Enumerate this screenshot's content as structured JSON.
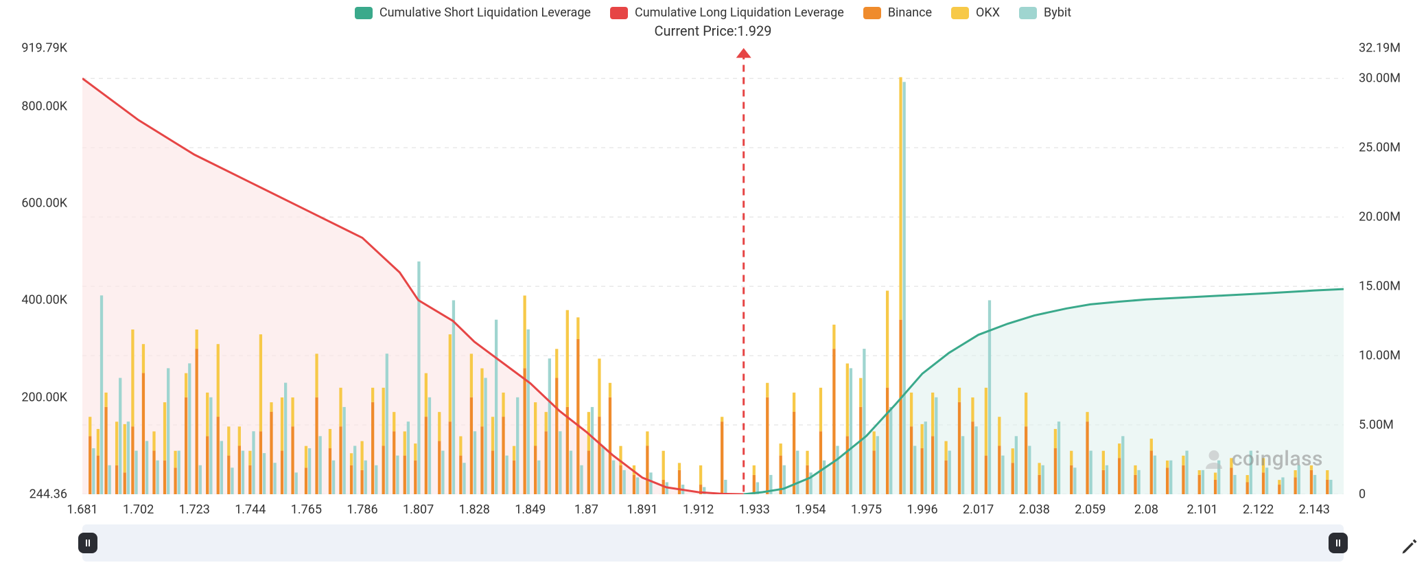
{
  "legend": {
    "items": [
      {
        "label": "Cumulative Short Liquidation Leverage",
        "color": "#3aa98b"
      },
      {
        "label": "Cumulative Long Liquidation Leverage",
        "color": "#e64545"
      },
      {
        "label": "Binance",
        "color": "#ef8b2c"
      },
      {
        "label": "OKX",
        "color": "#f7c948"
      },
      {
        "label": "Bybit",
        "color": "#9fd5d0"
      }
    ]
  },
  "current_price": {
    "label": "Current Price:",
    "value": "1.929"
  },
  "watermark": "coinglass",
  "chart": {
    "type": "combo-bar-area",
    "background_color": "#ffffff",
    "grid_color": "#dddddd",
    "grid_dash": "6 6",
    "label_fontsize": 18,
    "title_fontsize": 20,
    "x": {
      "min": 1.681,
      "max": 2.154,
      "ticks": [
        1.681,
        1.702,
        1.723,
        1.744,
        1.765,
        1.786,
        1.807,
        1.828,
        1.849,
        1.87,
        1.891,
        1.912,
        1.933,
        1.954,
        1.975,
        1.996,
        2.017,
        2.038,
        2.059,
        2.08,
        2.101,
        2.122,
        2.143
      ],
      "tick_labels": [
        "1.681",
        "1.702",
        "1.723",
        "1.744",
        "1.765",
        "1.786",
        "1.807",
        "1.828",
        "1.849",
        "1.87",
        "1.891",
        "1.912",
        "1.933",
        "1.954",
        "1.975",
        "1.996",
        "2.017",
        "2.038",
        "2.059",
        "2.08",
        "2.101",
        "2.122",
        "2.143"
      ]
    },
    "y_left": {
      "min": 244.36,
      "max": 919790,
      "ticks": [
        244.36,
        200000,
        400000,
        600000,
        800000,
        919790
      ],
      "tick_labels": [
        "244.36",
        "200.00K",
        "400.00K",
        "600.00K",
        "800.00K",
        "919.79K"
      ]
    },
    "y_right": {
      "min": 0,
      "max": 32190000,
      "ticks": [
        0,
        5000000,
        10000000,
        15000000,
        20000000,
        25000000,
        30000000,
        32190000
      ],
      "tick_labels": [
        "0",
        "5.00M",
        "10.00M",
        "15.00M",
        "20.00M",
        "25.00M",
        "30.00M",
        "32.19M"
      ]
    },
    "price_marker": {
      "x": 1.929,
      "color": "#e64545",
      "dash": "10 8",
      "width": 3,
      "arrow": true
    },
    "cumulative_long": {
      "color": "#e64545",
      "fill": "#fce7e7",
      "fill_opacity": 0.65,
      "width": 3,
      "points": [
        [
          1.681,
          30000000
        ],
        [
          1.702,
          27000000
        ],
        [
          1.723,
          24500000
        ],
        [
          1.744,
          22500000
        ],
        [
          1.765,
          20500000
        ],
        [
          1.786,
          18500000
        ],
        [
          1.8,
          16000000
        ],
        [
          1.807,
          14000000
        ],
        [
          1.82,
          12500000
        ],
        [
          1.828,
          11000000
        ],
        [
          1.842,
          9000000
        ],
        [
          1.849,
          8000000
        ],
        [
          1.86,
          6000000
        ],
        [
          1.87,
          4500000
        ],
        [
          1.88,
          2800000
        ],
        [
          1.891,
          1200000
        ],
        [
          1.9,
          500000
        ],
        [
          1.912,
          150000
        ],
        [
          1.921,
          30000
        ],
        [
          1.929,
          0
        ]
      ]
    },
    "cumulative_short": {
      "color": "#3aa98b",
      "fill": "#def1ec",
      "fill_opacity": 0.55,
      "width": 3,
      "points": [
        [
          1.929,
          0
        ],
        [
          1.936,
          150000
        ],
        [
          1.944,
          400000
        ],
        [
          1.954,
          1200000
        ],
        [
          1.964,
          2500000
        ],
        [
          1.975,
          4200000
        ],
        [
          1.986,
          6500000
        ],
        [
          1.996,
          8700000
        ],
        [
          2.006,
          10200000
        ],
        [
          2.017,
          11500000
        ],
        [
          2.028,
          12300000
        ],
        [
          2.038,
          12900000
        ],
        [
          2.05,
          13400000
        ],
        [
          2.059,
          13700000
        ],
        [
          2.07,
          13900000
        ],
        [
          2.08,
          14050000
        ],
        [
          2.095,
          14200000
        ],
        [
          2.11,
          14350000
        ],
        [
          2.125,
          14500000
        ],
        [
          2.143,
          14700000
        ],
        [
          2.154,
          14800000
        ]
      ]
    },
    "bars": {
      "bar_width_frac": 0.0011,
      "series_colors": {
        "binance": "#ef8b2c",
        "okx": "#f7c948",
        "bybit": "#9fd5d0"
      },
      "data": [
        {
          "x": 1.684,
          "binance": 120000,
          "okx": 40000,
          "bybit": 95000
        },
        {
          "x": 1.687,
          "binance": 80000,
          "okx": 55000,
          "bybit": 410000
        },
        {
          "x": 1.69,
          "binance": 180000,
          "okx": 30000,
          "bybit": 60000
        },
        {
          "x": 1.694,
          "binance": 60000,
          "okx": 90000,
          "bybit": 240000
        },
        {
          "x": 1.697,
          "binance": 45000,
          "okx": 100000,
          "bybit": 150000
        },
        {
          "x": 1.7,
          "binance": 140000,
          "okx": 200000,
          "bybit": 90000
        },
        {
          "x": 1.704,
          "binance": 250000,
          "okx": 60000,
          "bybit": 110000
        },
        {
          "x": 1.708,
          "binance": 90000,
          "okx": 40000,
          "bybit": 70000
        },
        {
          "x": 1.712,
          "binance": 70000,
          "okx": 120000,
          "bybit": 260000
        },
        {
          "x": 1.716,
          "binance": 55000,
          "okx": 35000,
          "bybit": 90000
        },
        {
          "x": 1.72,
          "binance": 200000,
          "okx": 50000,
          "bybit": 270000
        },
        {
          "x": 1.724,
          "binance": 300000,
          "okx": 40000,
          "bybit": 60000
        },
        {
          "x": 1.728,
          "binance": 120000,
          "okx": 90000,
          "bybit": 200000
        },
        {
          "x": 1.732,
          "binance": 160000,
          "okx": 150000,
          "bybit": 110000
        },
        {
          "x": 1.736,
          "binance": 80000,
          "okx": 60000,
          "bybit": 55000
        },
        {
          "x": 1.74,
          "binance": 100000,
          "okx": 40000,
          "bybit": 90000
        },
        {
          "x": 1.744,
          "binance": 60000,
          "okx": 30000,
          "bybit": 130000
        },
        {
          "x": 1.748,
          "binance": 130000,
          "okx": 200000,
          "bybit": 85000
        },
        {
          "x": 1.752,
          "binance": 170000,
          "okx": 20000,
          "bybit": 65000
        },
        {
          "x": 1.756,
          "binance": 90000,
          "okx": 110000,
          "bybit": 230000
        },
        {
          "x": 1.76,
          "binance": 140000,
          "okx": 60000,
          "bybit": 45000
        },
        {
          "x": 1.765,
          "binance": 55000,
          "okx": 45000,
          "bybit": 95000
        },
        {
          "x": 1.769,
          "binance": 200000,
          "okx": 90000,
          "bybit": 120000
        },
        {
          "x": 1.774,
          "binance": 95000,
          "okx": 40000,
          "bybit": 70000
        },
        {
          "x": 1.778,
          "binance": 140000,
          "okx": 80000,
          "bybit": 180000
        },
        {
          "x": 1.782,
          "binance": 60000,
          "okx": 25000,
          "bybit": 100000
        },
        {
          "x": 1.786,
          "binance": 50000,
          "okx": 60000,
          "bybit": 70000
        },
        {
          "x": 1.79,
          "binance": 190000,
          "okx": 30000,
          "bybit": 60000
        },
        {
          "x": 1.794,
          "binance": 100000,
          "okx": 120000,
          "bybit": 290000
        },
        {
          "x": 1.798,
          "binance": 130000,
          "okx": 40000,
          "bybit": 80000
        },
        {
          "x": 1.802,
          "binance": 80000,
          "okx": 50000,
          "bybit": 150000
        },
        {
          "x": 1.806,
          "binance": 70000,
          "okx": 35000,
          "bybit": 480000
        },
        {
          "x": 1.81,
          "binance": 160000,
          "okx": 90000,
          "bybit": 200000
        },
        {
          "x": 1.815,
          "binance": 110000,
          "okx": 60000,
          "bybit": 90000
        },
        {
          "x": 1.819,
          "binance": 150000,
          "okx": 180000,
          "bybit": 400000
        },
        {
          "x": 1.823,
          "binance": 80000,
          "okx": 40000,
          "bybit": 65000
        },
        {
          "x": 1.827,
          "binance": 200000,
          "okx": 90000,
          "bybit": 130000
        },
        {
          "x": 1.831,
          "binance": 140000,
          "okx": 120000,
          "bybit": 240000
        },
        {
          "x": 1.835,
          "binance": 90000,
          "okx": 70000,
          "bybit": 360000
        },
        {
          "x": 1.839,
          "binance": 160000,
          "okx": 50000,
          "bybit": 80000
        },
        {
          "x": 1.843,
          "binance": 70000,
          "okx": 30000,
          "bybit": 200000
        },
        {
          "x": 1.847,
          "binance": 260000,
          "okx": 150000,
          "bybit": 340000
        },
        {
          "x": 1.851,
          "binance": 100000,
          "okx": 90000,
          "bybit": 70000
        },
        {
          "x": 1.855,
          "binance": 130000,
          "okx": 40000,
          "bybit": 280000
        },
        {
          "x": 1.859,
          "binance": 240000,
          "okx": 60000,
          "bybit": 130000
        },
        {
          "x": 1.863,
          "binance": 180000,
          "okx": 200000,
          "bybit": 90000
        },
        {
          "x": 1.867,
          "binance": 320000,
          "okx": 45000,
          "bybit": 60000
        },
        {
          "x": 1.871,
          "binance": 90000,
          "okx": 80000,
          "bybit": 180000
        },
        {
          "x": 1.875,
          "binance": 160000,
          "okx": 120000,
          "bybit": 100000
        },
        {
          "x": 1.879,
          "binance": 200000,
          "okx": 30000,
          "bybit": 70000
        },
        {
          "x": 1.883,
          "binance": 60000,
          "okx": 40000,
          "bybit": 50000
        },
        {
          "x": 1.888,
          "binance": 40000,
          "okx": 20000,
          "bybit": 35000
        },
        {
          "x": 1.893,
          "binance": 100000,
          "okx": 30000,
          "bybit": 45000
        },
        {
          "x": 1.899,
          "binance": 30000,
          "okx": 60000,
          "bybit": 25000
        },
        {
          "x": 1.905,
          "binance": 50000,
          "okx": 15000,
          "bybit": 20000
        },
        {
          "x": 1.913,
          "binance": 20000,
          "okx": 40000,
          "bybit": 15000
        },
        {
          "x": 1.921,
          "binance": 150000,
          "okx": 10000,
          "bybit": 30000
        },
        {
          "x": 1.933,
          "binance": 40000,
          "okx": 20000,
          "bybit": 25000
        },
        {
          "x": 1.938,
          "binance": 200000,
          "okx": 30000,
          "bybit": 40000
        },
        {
          "x": 1.943,
          "binance": 80000,
          "okx": 25000,
          "bybit": 60000
        },
        {
          "x": 1.948,
          "binance": 170000,
          "okx": 40000,
          "bybit": 90000
        },
        {
          "x": 1.953,
          "binance": 60000,
          "okx": 30000,
          "bybit": 45000
        },
        {
          "x": 1.958,
          "binance": 130000,
          "okx": 90000,
          "bybit": 70000
        },
        {
          "x": 1.963,
          "binance": 300000,
          "okx": 50000,
          "bybit": 100000
        },
        {
          "x": 1.968,
          "binance": 120000,
          "okx": 150000,
          "bybit": 260000
        },
        {
          "x": 1.973,
          "binance": 180000,
          "okx": 60000,
          "bybit": 300000
        },
        {
          "x": 1.978,
          "binance": 90000,
          "okx": 40000,
          "bybit": 120000
        },
        {
          "x": 1.983,
          "binance": 220000,
          "okx": 200000,
          "bybit": 180000
        },
        {
          "x": 1.988,
          "binance": 360000,
          "okx": 500000,
          "bybit": 850000
        },
        {
          "x": 1.992,
          "binance": 140000,
          "okx": 70000,
          "bybit": 100000
        },
        {
          "x": 1.996,
          "binance": 95000,
          "okx": 50000,
          "bybit": 150000
        },
        {
          "x": 2.0,
          "binance": 120000,
          "okx": 90000,
          "bybit": 200000
        },
        {
          "x": 2.005,
          "binance": 70000,
          "okx": 40000,
          "bybit": 90000
        },
        {
          "x": 2.01,
          "binance": 190000,
          "okx": 30000,
          "bybit": 120000
        },
        {
          "x": 2.015,
          "binance": 150000,
          "okx": 50000,
          "bybit": 140000
        },
        {
          "x": 2.02,
          "binance": 80000,
          "okx": 140000,
          "bybit": 400000
        },
        {
          "x": 2.025,
          "binance": 100000,
          "okx": 60000,
          "bybit": 80000
        },
        {
          "x": 2.03,
          "binance": 65000,
          "okx": 30000,
          "bybit": 120000
        },
        {
          "x": 2.035,
          "binance": 140000,
          "okx": 70000,
          "bybit": 100000
        },
        {
          "x": 2.04,
          "binance": 40000,
          "okx": 25000,
          "bybit": 60000
        },
        {
          "x": 2.046,
          "binance": 95000,
          "okx": 40000,
          "bybit": 150000
        },
        {
          "x": 2.052,
          "binance": 60000,
          "okx": 30000,
          "bybit": 55000
        },
        {
          "x": 2.058,
          "binance": 150000,
          "okx": 20000,
          "bybit": 90000
        },
        {
          "x": 2.064,
          "binance": 50000,
          "okx": 40000,
          "bybit": 60000
        },
        {
          "x": 2.07,
          "binance": 75000,
          "okx": 30000,
          "bybit": 120000
        },
        {
          "x": 2.076,
          "binance": 40000,
          "okx": 20000,
          "bybit": 50000
        },
        {
          "x": 2.082,
          "binance": 90000,
          "okx": 25000,
          "bybit": 80000
        },
        {
          "x": 2.088,
          "binance": 55000,
          "okx": 15000,
          "bybit": 70000
        },
        {
          "x": 2.094,
          "binance": 60000,
          "okx": 20000,
          "bybit": 90000
        },
        {
          "x": 2.1,
          "binance": 40000,
          "okx": 10000,
          "bybit": 50000
        },
        {
          "x": 2.106,
          "binance": 30000,
          "okx": 15000,
          "bybit": 70000
        },
        {
          "x": 2.112,
          "binance": 55000,
          "okx": 20000,
          "bybit": 40000
        },
        {
          "x": 2.118,
          "binance": 25000,
          "okx": 15000,
          "bybit": 90000
        },
        {
          "x": 2.124,
          "binance": 45000,
          "okx": 30000,
          "bybit": 55000
        },
        {
          "x": 2.13,
          "binance": 20000,
          "okx": 10000,
          "bybit": 35000
        },
        {
          "x": 2.136,
          "binance": 35000,
          "okx": 15000,
          "bybit": 60000
        },
        {
          "x": 2.142,
          "binance": 50000,
          "okx": 10000,
          "bybit": 40000
        },
        {
          "x": 2.148,
          "binance": 30000,
          "okx": 20000,
          "bybit": 30000
        }
      ]
    }
  }
}
